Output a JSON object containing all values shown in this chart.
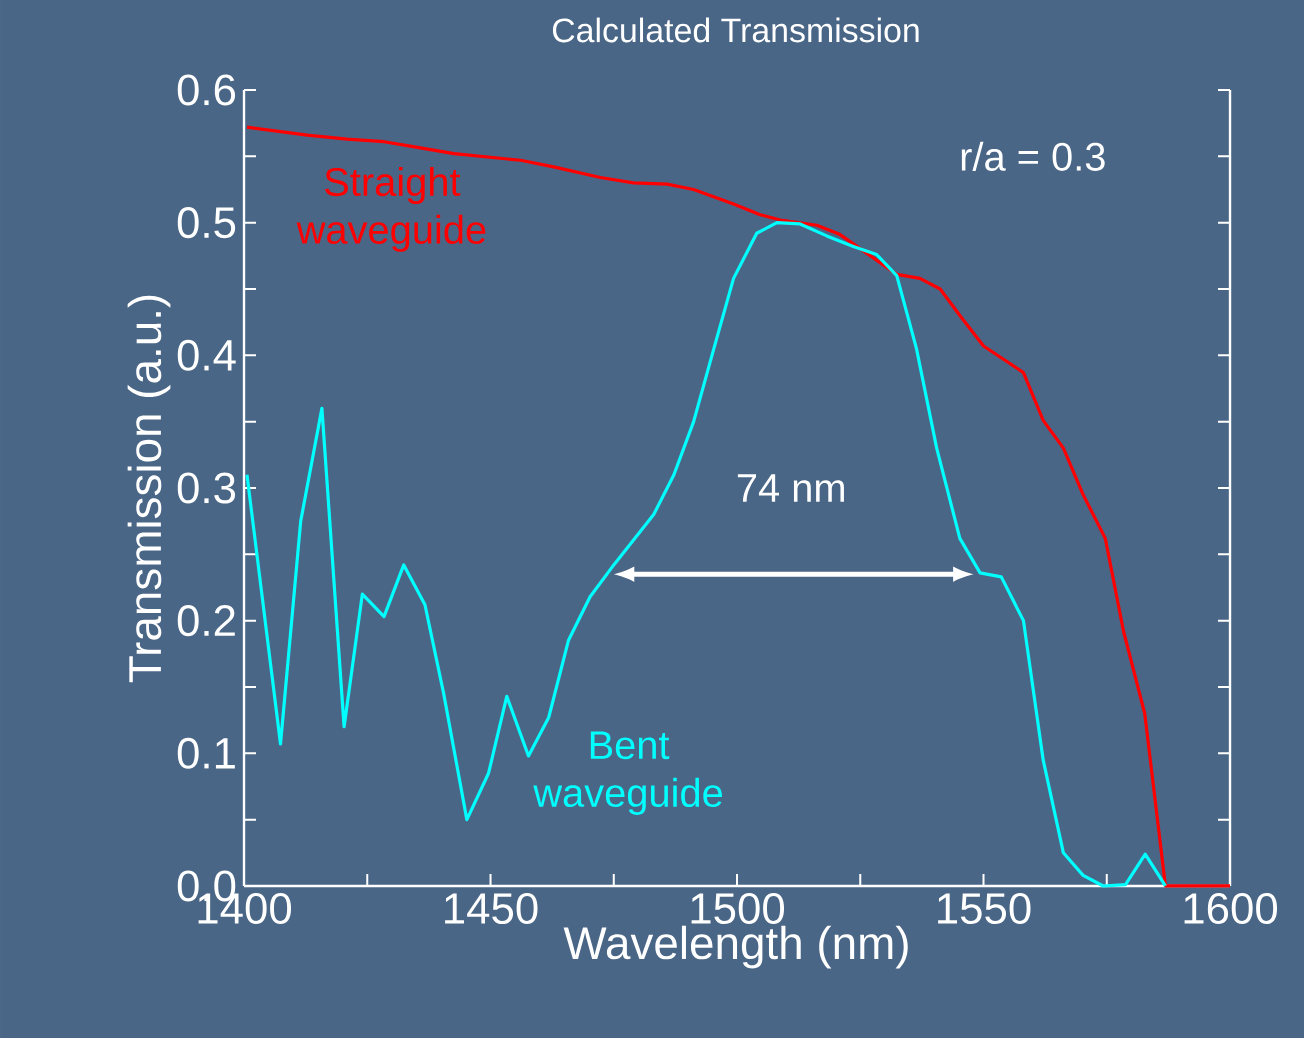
{
  "chart_data": {
    "type": "line",
    "title": "Calculated Transmission",
    "xlabel": "Wavelength (nm)",
    "ylabel": "Transmission (a.u.)",
    "annotations": [
      "r/a = 0.3",
      "74 nm"
    ],
    "xlim": [
      1400,
      1600
    ],
    "xticks": [
      1400,
      {
        "value": 1425,
        "label": null
      },
      1450,
      {
        "value": 1475,
        "label": null
      },
      1500,
      {
        "value": 1525,
        "label": null
      },
      1550,
      {
        "value": 1575,
        "label": null
      },
      1600
    ],
    "ylim": [
      0,
      0.6
    ],
    "yticks": [
      {
        "value": 0,
        "label": "0.0"
      },
      {
        "value": 0.05,
        "label": null
      },
      0.1,
      {
        "value": 0.15,
        "label": null
      },
      0.2,
      {
        "value": 0.25,
        "label": null
      },
      0.3,
      {
        "value": 0.35,
        "label": null
      },
      0.4,
      {
        "value": 0.45,
        "label": null
      },
      0.5,
      {
        "value": 0.55,
        "label": null
      },
      0.6
    ],
    "series": [
      {
        "name": "Straight waveguide",
        "color": "#ff0000",
        "x": [
          1400.6,
          1412.8,
          1420.9,
          1428.4,
          1433.1,
          1442.6,
          1456.1,
          1462.8,
          1472.3,
          1479.0,
          1485.8,
          1491.2,
          1499.3,
          1504.7,
          1508.8,
          1516.2,
          1520.9,
          1526.3,
          1532.4,
          1537.1,
          1541.2,
          1545.2,
          1550.0,
          1558.1,
          1562.1,
          1566.2,
          1570.2,
          1574.7,
          1578.4,
          1582.7,
          1586.9,
          1600
        ],
        "values": [
          0.572,
          0.566,
          0.563,
          0.561,
          0.558,
          0.552,
          0.547,
          0.542,
          0.534,
          0.53,
          0.529,
          0.525,
          0.514,
          0.506,
          0.502,
          0.498,
          0.491,
          0.477,
          0.461,
          0.458,
          0.45,
          0.43,
          0.407,
          0.387,
          0.351,
          0.33,
          0.295,
          0.262,
          0.192,
          0.13,
          0.0,
          0.0
        ]
      },
      {
        "name": "Bent waveguide",
        "color": "#00ffff",
        "x": [
          1400.6,
          1407.4,
          1411.5,
          1415.8,
          1420.3,
          1424.0,
          1428.4,
          1432.4,
          1436.7,
          1440.5,
          1445.2,
          1449.6,
          1453.3,
          1457.7,
          1461.8,
          1465.8,
          1470.2,
          1475.0,
          1483.1,
          1487.2,
          1491.2,
          1495.3,
          1499.3,
          1504.0,
          1508.1,
          1512.8,
          1518.2,
          1523.6,
          1528.3,
          1532.4,
          1536.4,
          1540.5,
          1545.2,
          1549.3,
          1553.6,
          1558.1,
          1562.1,
          1566.2,
          1570.2,
          1574.3,
          1578.8,
          1582.8,
          1586.9
        ],
        "values": [
          0.31,
          0.107,
          0.275,
          0.36,
          0.12,
          0.22,
          0.203,
          0.242,
          0.212,
          0.145,
          0.05,
          0.085,
          0.143,
          0.098,
          0.127,
          0.185,
          0.218,
          0.242,
          0.28,
          0.31,
          0.35,
          0.405,
          0.458,
          0.492,
          0.5,
          0.499,
          0.49,
          0.482,
          0.476,
          0.46,
          0.405,
          0.33,
          0.262,
          0.236,
          0.233,
          0.2,
          0.095,
          0.025,
          0.008,
          0.0,
          0.001,
          0.024,
          0.0
        ]
      }
    ]
  }
}
